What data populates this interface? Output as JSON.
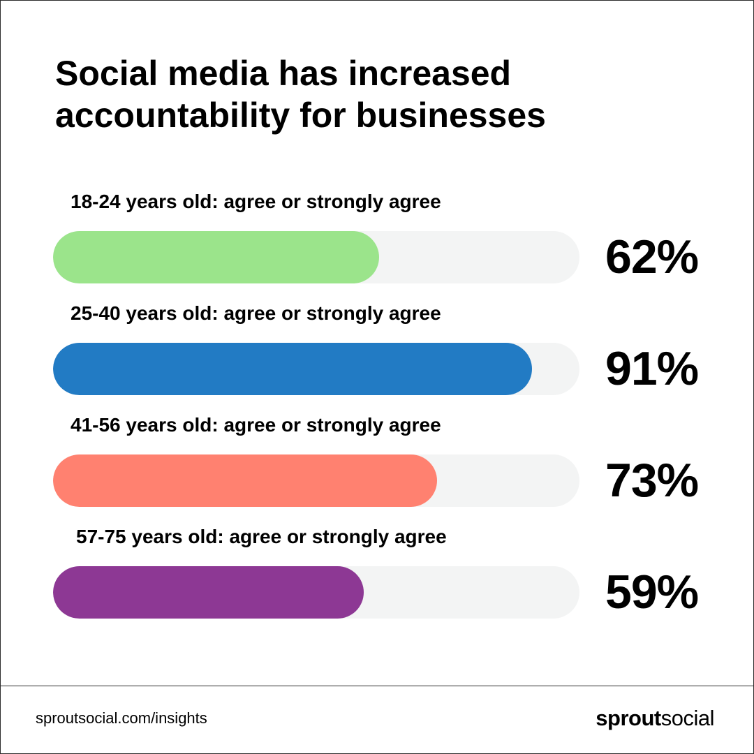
{
  "title_lines": [
    "Social media has increased",
    "accountability for businesses"
  ],
  "chart_data": {
    "type": "bar",
    "orientation": "horizontal",
    "categories": [
      "18-24 years old: agree or strongly agree",
      "25-40 years old: agree or strongly agree",
      "41-56 years old: agree or strongly agree",
      "57-75 years old: agree or strongly agree"
    ],
    "values": [
      62,
      91,
      73,
      59
    ],
    "value_labels": [
      "62%",
      "91%",
      "73%",
      "59%"
    ],
    "colors": [
      "#9be48b",
      "#227bc4",
      "#ff8170",
      "#8d3894"
    ],
    "track_color": "#f3f4f4",
    "xlim": [
      0,
      100
    ],
    "grid": false
  },
  "footer": {
    "link": "sproutsocial.com/insights",
    "logo": {
      "bold": "sprout",
      "light": "social"
    }
  }
}
